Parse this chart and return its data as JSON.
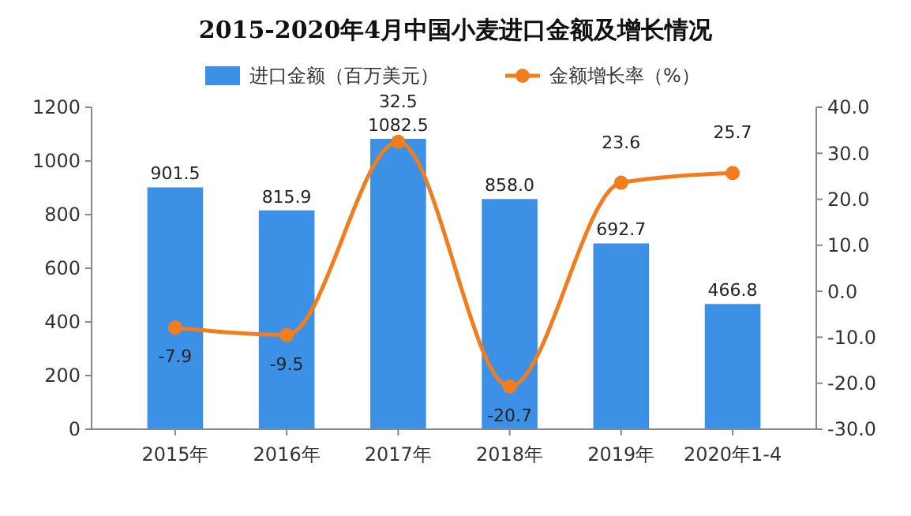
{
  "chart_data": {
    "type": "bar",
    "title": "2015-2020年4月中国小麦进口金额及增长情况",
    "categories": [
      "2015年",
      "2016年",
      "2017年",
      "2018年",
      "2019年",
      "2020年1-4"
    ],
    "series": [
      {
        "name": "进口金额（百万美元）",
        "color": "#3c91e6",
        "values": [
          901.5,
          815.9,
          1082.5,
          858.0,
          692.7,
          466.8
        ],
        "value_labels": [
          "901.5",
          "815.9",
          "1082.5",
          "858.0",
          "692.7",
          "466.8"
        ]
      },
      {
        "name": "金额增长率（%）",
        "type": "line",
        "axis": "y2",
        "color": "#f07d1e",
        "marker": "circle",
        "values": [
          -7.9,
          -9.5,
          32.5,
          -20.7,
          23.6,
          25.7
        ],
        "value_labels": [
          "-7.9",
          "-9.5",
          "32.5",
          "-20.7",
          "23.6",
          "25.7"
        ]
      }
    ],
    "ylim": [
      0,
      1200
    ],
    "yticks": [
      0,
      200,
      400,
      600,
      800,
      1000,
      1200
    ],
    "y2lim": [
      -30,
      40
    ],
    "y2ticks": [
      {
        "value": -30,
        "label": "-30.0"
      },
      {
        "value": -20,
        "label": "-20.0"
      },
      {
        "value": -10,
        "label": "-10.0"
      },
      {
        "value": 0,
        "label": "0.0"
      },
      {
        "value": 10,
        "label": "10.0"
      },
      {
        "value": 20,
        "label": "20.0"
      },
      {
        "value": 30,
        "label": "30.0"
      },
      {
        "value": 40,
        "label": "40.0"
      }
    ],
    "legend": "top",
    "grid": false
  }
}
